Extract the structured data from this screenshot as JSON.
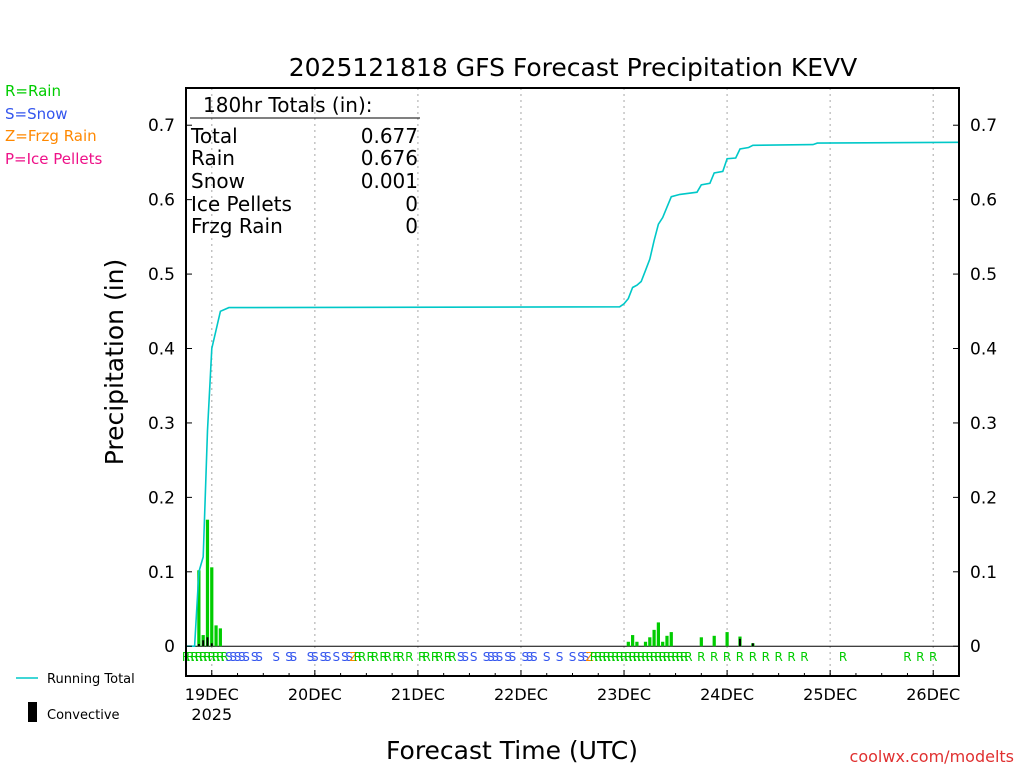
{
  "colors": {
    "rain": "#00cc00",
    "snow": "#3355ee",
    "frzg": "#ff8800",
    "ice": "#ee1188",
    "running_total": "#00c8c8",
    "convective": "#000000",
    "grid": "#bbbbbb",
    "credit": "#e03030"
  },
  "legend": {
    "rain": "R=Rain",
    "snow": "S=Snow",
    "frzg": "Z=Frzg Rain",
    "ice": "P=Ice Pellets",
    "running_total": "Running Total",
    "convective": "Convective"
  },
  "totals": {
    "header": "180hr Totals (in):",
    "rows": [
      {
        "label": "Total",
        "value": "0.677"
      },
      {
        "label": "Rain",
        "value": "0.676"
      },
      {
        "label": "Snow",
        "value": "0.001"
      },
      {
        "label": "Ice Pellets",
        "value": "0"
      },
      {
        "label": "Frzg Rain",
        "value": "0"
      }
    ]
  },
  "credit": "coolwx.com/modelts",
  "chart_data": {
    "type": "bar",
    "title": "2025121818 GFS Forecast Precipitation KEVV",
    "xlabel": "Forecast Time (UTC)",
    "ylabel": "Precipitation (in)",
    "ylim": [
      -0.04,
      0.75
    ],
    "yticks": [
      0,
      0.1,
      0.2,
      0.3,
      0.4,
      0.5,
      0.6,
      0.7
    ],
    "x_unit": "hours since 18 Dec 2025 18Z",
    "xlim": [
      0,
      180
    ],
    "xticks": [
      {
        "hour": 6,
        "label": "19DEC",
        "sublabel": "2025"
      },
      {
        "hour": 30,
        "label": "20DEC"
      },
      {
        "hour": 54,
        "label": "21DEC"
      },
      {
        "hour": 78,
        "label": "22DEC"
      },
      {
        "hour": 102,
        "label": "23DEC"
      },
      {
        "hour": 126,
        "label": "24DEC"
      },
      {
        "hour": 150,
        "label": "25DEC"
      },
      {
        "hour": 174,
        "label": "26DEC"
      }
    ],
    "bars": [
      {
        "hour": 3,
        "value": 0.102,
        "conv": 0.003
      },
      {
        "hour": 4,
        "value": 0.015,
        "conv": 0.008
      },
      {
        "hour": 5,
        "value": 0.17,
        "conv": 0.012
      },
      {
        "hour": 6,
        "value": 0.106,
        "conv": 0.004
      },
      {
        "hour": 7,
        "value": 0.028,
        "conv": 0.0
      },
      {
        "hour": 8,
        "value": 0.024,
        "conv": 0.0
      },
      {
        "hour": 103,
        "value": 0.006,
        "conv": 0.0
      },
      {
        "hour": 104,
        "value": 0.015,
        "conv": 0.0
      },
      {
        "hour": 105,
        "value": 0.006,
        "conv": 0.0
      },
      {
        "hour": 107,
        "value": 0.006,
        "conv": 0.0
      },
      {
        "hour": 108,
        "value": 0.012,
        "conv": 0.0
      },
      {
        "hour": 109,
        "value": 0.022,
        "conv": 0.0
      },
      {
        "hour": 110,
        "value": 0.032,
        "conv": 0.0
      },
      {
        "hour": 111,
        "value": 0.006,
        "conv": 0.0
      },
      {
        "hour": 112,
        "value": 0.014,
        "conv": 0.0
      },
      {
        "hour": 113,
        "value": 0.019,
        "conv": 0.0
      },
      {
        "hour": 120,
        "value": 0.012,
        "conv": 0.0
      },
      {
        "hour": 123,
        "value": 0.014,
        "conv": 0.0
      },
      {
        "hour": 126,
        "value": 0.019,
        "conv": 0.0
      },
      {
        "hour": 129,
        "value": 0.013,
        "conv": 0.01
      },
      {
        "hour": 132,
        "value": 0.004,
        "conv": 0.004
      }
    ],
    "running_total": [
      {
        "hour": 0,
        "value": 0.0
      },
      {
        "hour": 2,
        "value": 0.0
      },
      {
        "hour": 3,
        "value": 0.1
      },
      {
        "hour": 4,
        "value": 0.12
      },
      {
        "hour": 5,
        "value": 0.29
      },
      {
        "hour": 6,
        "value": 0.4
      },
      {
        "hour": 7,
        "value": 0.425
      },
      {
        "hour": 8,
        "value": 0.45
      },
      {
        "hour": 10,
        "value": 0.455
      },
      {
        "hour": 101,
        "value": 0.456
      },
      {
        "hour": 102,
        "value": 0.46
      },
      {
        "hour": 103,
        "value": 0.467
      },
      {
        "hour": 104,
        "value": 0.482
      },
      {
        "hour": 105,
        "value": 0.485
      },
      {
        "hour": 106,
        "value": 0.49
      },
      {
        "hour": 107,
        "value": 0.505
      },
      {
        "hour": 108,
        "value": 0.52
      },
      {
        "hour": 109,
        "value": 0.545
      },
      {
        "hour": 110,
        "value": 0.567
      },
      {
        "hour": 111,
        "value": 0.576
      },
      {
        "hour": 112,
        "value": 0.59
      },
      {
        "hour": 113,
        "value": 0.604
      },
      {
        "hour": 115,
        "value": 0.607
      },
      {
        "hour": 119,
        "value": 0.61
      },
      {
        "hour": 120,
        "value": 0.62
      },
      {
        "hour": 122,
        "value": 0.622
      },
      {
        "hour": 123,
        "value": 0.636
      },
      {
        "hour": 125,
        "value": 0.638
      },
      {
        "hour": 126,
        "value": 0.655
      },
      {
        "hour": 128,
        "value": 0.656
      },
      {
        "hour": 129,
        "value": 0.668
      },
      {
        "hour": 131,
        "value": 0.67
      },
      {
        "hour": 132,
        "value": 0.673
      },
      {
        "hour": 146,
        "value": 0.674
      },
      {
        "hour": 147,
        "value": 0.676
      },
      {
        "hour": 180,
        "value": 0.677
      }
    ],
    "ptype": [
      {
        "hour": 0,
        "t": "R"
      },
      {
        "hour": 1,
        "t": "R"
      },
      {
        "hour": 2,
        "t": "R"
      },
      {
        "hour": 3,
        "t": "R"
      },
      {
        "hour": 4,
        "t": "R"
      },
      {
        "hour": 5,
        "t": "R"
      },
      {
        "hour": 6,
        "t": "R"
      },
      {
        "hour": 7,
        "t": "R"
      },
      {
        "hour": 8,
        "t": "R"
      },
      {
        "hour": 9,
        "t": "R"
      },
      {
        "hour": 10,
        "t": "S"
      },
      {
        "hour": 11,
        "t": "S"
      },
      {
        "hour": 12,
        "t": "S"
      },
      {
        "hour": 13,
        "t": "S"
      },
      {
        "hour": 14,
        "t": "S"
      },
      {
        "hour": 16,
        "t": "S"
      },
      {
        "hour": 17,
        "t": "S"
      },
      {
        "hour": 21,
        "t": "S"
      },
      {
        "hour": 24,
        "t": "S"
      },
      {
        "hour": 25,
        "t": "S"
      },
      {
        "hour": 29,
        "t": "S"
      },
      {
        "hour": 30,
        "t": "S"
      },
      {
        "hour": 32,
        "t": "S"
      },
      {
        "hour": 33,
        "t": "S"
      },
      {
        "hour": 35,
        "t": "S"
      },
      {
        "hour": 37,
        "t": "S"
      },
      {
        "hour": 38,
        "t": "S"
      },
      {
        "hour": 39,
        "t": "Z"
      },
      {
        "hour": 40,
        "t": "R"
      },
      {
        "hour": 41,
        "t": "R"
      },
      {
        "hour": 43,
        "t": "R"
      },
      {
        "hour": 44,
        "t": "R"
      },
      {
        "hour": 46,
        "t": "R"
      },
      {
        "hour": 47,
        "t": "R"
      },
      {
        "hour": 49,
        "t": "R"
      },
      {
        "hour": 50,
        "t": "R"
      },
      {
        "hour": 52,
        "t": "R"
      },
      {
        "hour": 55,
        "t": "R"
      },
      {
        "hour": 56,
        "t": "R"
      },
      {
        "hour": 58,
        "t": "R"
      },
      {
        "hour": 59,
        "t": "R"
      },
      {
        "hour": 61,
        "t": "R"
      },
      {
        "hour": 62,
        "t": "R"
      },
      {
        "hour": 64,
        "t": "S"
      },
      {
        "hour": 65,
        "t": "S"
      },
      {
        "hour": 67,
        "t": "S"
      },
      {
        "hour": 70,
        "t": "S"
      },
      {
        "hour": 71,
        "t": "S"
      },
      {
        "hour": 72,
        "t": "S"
      },
      {
        "hour": 73,
        "t": "S"
      },
      {
        "hour": 75,
        "t": "S"
      },
      {
        "hour": 76,
        "t": "S"
      },
      {
        "hour": 79,
        "t": "S"
      },
      {
        "hour": 80,
        "t": "S"
      },
      {
        "hour": 81,
        "t": "S"
      },
      {
        "hour": 84,
        "t": "S"
      },
      {
        "hour": 87,
        "t": "S"
      },
      {
        "hour": 90,
        "t": "S"
      },
      {
        "hour": 92,
        "t": "S"
      },
      {
        "hour": 93,
        "t": "S"
      },
      {
        "hour": 94,
        "t": "Z"
      },
      {
        "hour": 95,
        "t": "R"
      },
      {
        "hour": 96,
        "t": "R"
      },
      {
        "hour": 97,
        "t": "R"
      },
      {
        "hour": 98,
        "t": "R"
      },
      {
        "hour": 99,
        "t": "R"
      },
      {
        "hour": 100,
        "t": "R"
      },
      {
        "hour": 101,
        "t": "R"
      },
      {
        "hour": 102,
        "t": "R"
      },
      {
        "hour": 103,
        "t": "R"
      },
      {
        "hour": 104,
        "t": "R"
      },
      {
        "hour": 105,
        "t": "R"
      },
      {
        "hour": 106,
        "t": "R"
      },
      {
        "hour": 107,
        "t": "R"
      },
      {
        "hour": 108,
        "t": "R"
      },
      {
        "hour": 109,
        "t": "R"
      },
      {
        "hour": 110,
        "t": "R"
      },
      {
        "hour": 111,
        "t": "R"
      },
      {
        "hour": 112,
        "t": "R"
      },
      {
        "hour": 113,
        "t": "R"
      },
      {
        "hour": 114,
        "t": "R"
      },
      {
        "hour": 115,
        "t": "R"
      },
      {
        "hour": 116,
        "t": "R"
      },
      {
        "hour": 117,
        "t": "R"
      },
      {
        "hour": 120,
        "t": "R"
      },
      {
        "hour": 123,
        "t": "R"
      },
      {
        "hour": 126,
        "t": "R"
      },
      {
        "hour": 129,
        "t": "R"
      },
      {
        "hour": 132,
        "t": "R"
      },
      {
        "hour": 135,
        "t": "R"
      },
      {
        "hour": 138,
        "t": "R"
      },
      {
        "hour": 141,
        "t": "R"
      },
      {
        "hour": 144,
        "t": "R"
      },
      {
        "hour": 153,
        "t": "R"
      },
      {
        "hour": 168,
        "t": "R"
      },
      {
        "hour": 171,
        "t": "R"
      },
      {
        "hour": 174,
        "t": "R"
      }
    ]
  }
}
